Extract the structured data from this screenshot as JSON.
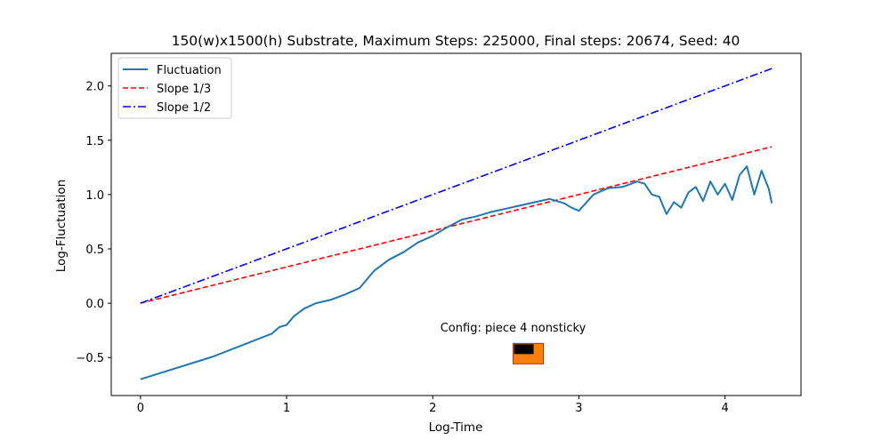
{
  "chart_data": {
    "type": "line",
    "title": "150(w)x1500(h) Substrate, Maximum Steps: 225000, Final steps: 20674, Seed: 40",
    "xlabel": "Log-Time",
    "ylabel": "Log-Fluctuation",
    "xlim": [
      -0.2,
      4.52
    ],
    "ylim": [
      -0.85,
      2.3
    ],
    "xticks": [
      0,
      1,
      2,
      3,
      4
    ],
    "xtick_labels": [
      "0",
      "1",
      "2",
      "3",
      "4"
    ],
    "yticks": [
      -0.5,
      0.0,
      0.5,
      1.0,
      1.5,
      2.0
    ],
    "ytick_labels": [
      "−0.5",
      "0.0",
      "0.5",
      "1.0",
      "1.5",
      "2.0"
    ],
    "grid": false,
    "legend_position": "upper left",
    "series": [
      {
        "name": "Fluctuation",
        "style": "solid",
        "color": "#1f77b4",
        "x": [
          0,
          0.5,
          0.9,
          0.95,
          1.0,
          1.05,
          1.12,
          1.2,
          1.3,
          1.4,
          1.5,
          1.6,
          1.7,
          1.8,
          1.9,
          2.0,
          2.1,
          2.2,
          2.3,
          2.4,
          2.5,
          2.6,
          2.7,
          2.8,
          2.9,
          2.95,
          3.0,
          3.1,
          3.2,
          3.3,
          3.4,
          3.45,
          3.5,
          3.55,
          3.6,
          3.65,
          3.7,
          3.75,
          3.8,
          3.85,
          3.9,
          3.95,
          4.0,
          4.05,
          4.1,
          4.15,
          4.2,
          4.25,
          4.3,
          4.32
        ],
        "y": [
          -0.7,
          -0.49,
          -0.28,
          -0.22,
          -0.2,
          -0.12,
          -0.05,
          0.0,
          0.03,
          0.08,
          0.14,
          0.3,
          0.4,
          0.47,
          0.56,
          0.62,
          0.7,
          0.77,
          0.8,
          0.84,
          0.87,
          0.9,
          0.93,
          0.96,
          0.92,
          0.88,
          0.85,
          1.0,
          1.06,
          1.07,
          1.12,
          1.1,
          1.0,
          0.98,
          0.82,
          0.93,
          0.88,
          1.02,
          1.07,
          0.94,
          1.12,
          1.0,
          1.1,
          0.95,
          1.18,
          1.26,
          1.0,
          1.22,
          1.05,
          0.92
        ]
      },
      {
        "name": "Slope 1/3",
        "style": "dashed",
        "color": "#ff0000",
        "x": [
          0,
          4.32
        ],
        "y": [
          0,
          1.44
        ]
      },
      {
        "name": "Slope 1/2",
        "style": "dashdot",
        "color": "#0000ff",
        "x": [
          0,
          4.32
        ],
        "y": [
          0,
          2.16
        ]
      }
    ],
    "annotation": {
      "text": "Config:  piece 4 nonsticky",
      "x": 2.55,
      "y": -0.22
    },
    "inset_image": {
      "description": "piece icon",
      "fill": "#ff7f0e",
      "border": "#cc2200",
      "inner": "#000000"
    }
  }
}
